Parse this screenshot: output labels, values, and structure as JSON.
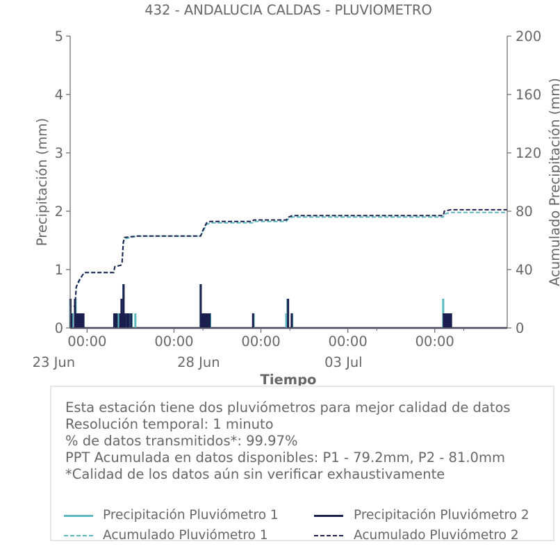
{
  "chart_data": {
    "type": "bar",
    "title": "432 - ANDALUCIA CALDAS - PLUVIOMETRO",
    "xlabel": "Tiempo",
    "ylabel": "Precipitación (mm)",
    "y2label": "Acumulado Precipitación (mm)",
    "xlim": [
      "2025-06-22 10:00",
      "2025-07-07 12:00"
    ],
    "ylim": [
      0,
      5
    ],
    "y2lim": [
      0,
      200
    ],
    "yticks": [
      0,
      1,
      2,
      3,
      4,
      5
    ],
    "y2ticks": [
      0,
      40,
      80,
      120,
      160,
      200
    ],
    "xticks": [
      {
        "x": "2025-06-23 00:00",
        "label": "00:00"
      },
      {
        "x": "2025-06-26 00:00",
        "label": "00:00"
      },
      {
        "x": "2025-06-29 00:00",
        "label": "00:00"
      },
      {
        "x": "2025-07-02 00:00",
        "label": "00:00"
      },
      {
        "x": "2025-07-05 00:00",
        "label": "00:00"
      }
    ],
    "xdate_labels": [
      {
        "x": "2025-06-23 00:00",
        "label": "23 Jun"
      },
      {
        "x": "2025-06-28 00:00",
        "label": "28 Jun"
      },
      {
        "x": "2025-07-03 00:00",
        "label": "03 Jul"
      }
    ],
    "minor_xticks": [
      "2025-06-27 00:00",
      "2025-06-30 00:00",
      "2025-07-03 00:00",
      "2025-07-06 00:00"
    ],
    "series": [
      {
        "name": "Precipitación Pluviómetro 1",
        "kind": "bar",
        "color": "#5bb8bd",
        "points": [
          [
            "2025-06-22 10:05",
            0.5
          ],
          [
            "2025-06-22 12:00",
            0.25
          ],
          [
            "2025-06-22 14:30",
            0.5
          ],
          [
            "2025-06-22 15:30",
            0.25
          ],
          [
            "2025-06-22 16:30",
            0.25
          ],
          [
            "2025-06-22 17:30",
            0.25
          ],
          [
            "2025-06-22 18:30",
            0.25
          ],
          [
            "2025-06-22 19:30",
            0.25
          ],
          [
            "2025-06-22 20:30",
            0.25
          ],
          [
            "2025-06-23 23:00",
            0.25
          ],
          [
            "2025-06-23 23:45",
            0.25
          ],
          [
            "2025-06-24 01:00",
            0.25
          ],
          [
            "2025-06-24 02:00",
            0.25
          ],
          [
            "2025-06-24 04:00",
            0.25
          ],
          [
            "2025-06-24 05:00",
            0.5
          ],
          [
            "2025-06-24 05:30",
            0.25
          ],
          [
            "2025-06-24 06:00",
            0.75
          ],
          [
            "2025-06-24 07:00",
            0.25
          ],
          [
            "2025-06-24 08:30",
            0.25
          ],
          [
            "2025-06-24 10:00",
            0.25
          ],
          [
            "2025-06-24 12:00",
            0.25
          ],
          [
            "2025-06-24 13:00",
            0.25
          ],
          [
            "2025-06-24 16:00",
            0.25
          ],
          [
            "2025-06-26 22:00",
            0.75
          ],
          [
            "2025-06-26 22:40",
            0.25
          ],
          [
            "2025-06-26 23:30",
            0.25
          ],
          [
            "2025-06-27 00:30",
            0.25
          ],
          [
            "2025-06-27 01:30",
            0.25
          ],
          [
            "2025-06-27 02:30",
            0.25
          ],
          [
            "2025-06-27 03:30",
            0.25
          ],
          [
            "2025-06-27 05:00",
            0.25
          ],
          [
            "2025-06-27 06:00",
            0.25
          ],
          [
            "2025-06-28 18:00",
            0.25
          ],
          [
            "2025-06-29 21:00",
            0.25
          ],
          [
            "2025-06-29 22:00",
            0.5
          ],
          [
            "2025-06-30 02:00",
            0.25
          ],
          [
            "2025-07-05 07:00",
            0.5
          ],
          [
            "2025-07-05 08:00",
            0.25
          ],
          [
            "2025-07-05 09:30",
            0.25
          ],
          [
            "2025-07-05 11:00",
            0.25
          ],
          [
            "2025-07-05 12:00",
            0.25
          ],
          [
            "2025-07-05 13:00",
            0.25
          ]
        ]
      },
      {
        "name": "Precipitación Pluviómetro 2",
        "kind": "bar",
        "color": "#1a1f4e",
        "points": [
          [
            "2025-06-22 10:15",
            0.5
          ],
          [
            "2025-06-22 11:00",
            0.25
          ],
          [
            "2025-06-22 14:00",
            0.5
          ],
          [
            "2025-06-22 15:00",
            0.25
          ],
          [
            "2025-06-22 16:00",
            0.25
          ],
          [
            "2025-06-22 17:00",
            0.25
          ],
          [
            "2025-06-22 18:00",
            0.25
          ],
          [
            "2025-06-22 19:00",
            0.25
          ],
          [
            "2025-06-22 20:00",
            0.25
          ],
          [
            "2025-06-22 21:00",
            0.25
          ],
          [
            "2025-06-23 22:30",
            0.25
          ],
          [
            "2025-06-23 23:30",
            0.25
          ],
          [
            "2025-06-24 00:30",
            0.25
          ],
          [
            "2025-06-24 03:30",
            0.25
          ],
          [
            "2025-06-24 04:30",
            0.5
          ],
          [
            "2025-06-24 05:15",
            0.25
          ],
          [
            "2025-06-24 06:15",
            0.75
          ],
          [
            "2025-06-24 07:15",
            0.25
          ],
          [
            "2025-06-24 09:00",
            0.25
          ],
          [
            "2025-06-24 10:30",
            0.25
          ],
          [
            "2025-06-24 12:30",
            0.25
          ],
          [
            "2025-06-26 22:10",
            0.75
          ],
          [
            "2025-06-26 23:00",
            0.25
          ],
          [
            "2025-06-27 00:00",
            0.25
          ],
          [
            "2025-06-27 01:00",
            0.25
          ],
          [
            "2025-06-27 02:00",
            0.25
          ],
          [
            "2025-06-27 03:00",
            0.25
          ],
          [
            "2025-06-27 04:00",
            0.25
          ],
          [
            "2025-06-27 05:30",
            0.25
          ],
          [
            "2025-06-28 17:30",
            0.25
          ],
          [
            "2025-06-29 22:30",
            0.5
          ],
          [
            "2025-06-30 01:30",
            0.25
          ],
          [
            "2025-07-05 07:30",
            0.25
          ],
          [
            "2025-07-05 08:30",
            0.25
          ],
          [
            "2025-07-05 09:00",
            0.25
          ],
          [
            "2025-07-05 10:00",
            0.25
          ],
          [
            "2025-07-05 11:30",
            0.25
          ],
          [
            "2025-07-05 12:30",
            0.25
          ],
          [
            "2025-07-05 13:30",
            0.25
          ]
        ]
      },
      {
        "name": "Acumulado Pluviómetro 1",
        "kind": "line-dashed",
        "axis": "right",
        "color": "#5bb8bd",
        "points": [
          [
            "2025-06-22 10:00",
            0
          ],
          [
            "2025-06-22 10:05",
            10
          ],
          [
            "2025-06-22 10:10",
            15
          ],
          [
            "2025-06-22 14:00",
            15
          ],
          [
            "2025-06-22 15:00",
            28
          ],
          [
            "2025-06-22 17:00",
            31
          ],
          [
            "2025-06-22 20:00",
            36
          ],
          [
            "2025-06-22 22:00",
            38
          ],
          [
            "2025-06-23 22:00",
            38
          ],
          [
            "2025-06-23 23:00",
            42
          ],
          [
            "2025-06-24 04:00",
            43
          ],
          [
            "2025-06-24 05:00",
            45
          ],
          [
            "2025-06-24 06:00",
            58
          ],
          [
            "2025-06-24 07:00",
            61
          ],
          [
            "2025-06-24 12:00",
            62
          ],
          [
            "2025-06-24 18:00",
            63
          ],
          [
            "2025-06-26 22:00",
            63
          ],
          [
            "2025-06-27 00:00",
            66
          ],
          [
            "2025-06-27 03:00",
            71
          ],
          [
            "2025-06-27 06:00",
            72
          ],
          [
            "2025-06-28 17:00",
            72
          ],
          [
            "2025-06-28 18:00",
            73
          ],
          [
            "2025-06-29 21:00",
            73
          ],
          [
            "2025-06-29 23:00",
            75
          ],
          [
            "2025-06-30 02:00",
            76
          ],
          [
            "2025-07-05 07:00",
            76
          ],
          [
            "2025-07-05 08:00",
            78
          ],
          [
            "2025-07-05 13:00",
            79.2
          ],
          [
            "2025-07-07 12:00",
            79.2
          ]
        ]
      },
      {
        "name": "Acumulado Pluviómetro 2",
        "kind": "line-dashed",
        "axis": "right",
        "color": "#1a1f4e",
        "points": [
          [
            "2025-06-22 10:00",
            0
          ],
          [
            "2025-06-22 10:15",
            10
          ],
          [
            "2025-06-22 10:20",
            15
          ],
          [
            "2025-06-22 14:00",
            15
          ],
          [
            "2025-06-22 15:00",
            28
          ],
          [
            "2025-06-22 17:00",
            32
          ],
          [
            "2025-06-22 20:00",
            36
          ],
          [
            "2025-06-22 22:00",
            38
          ],
          [
            "2025-06-23 22:00",
            38
          ],
          [
            "2025-06-23 23:00",
            42
          ],
          [
            "2025-06-24 04:00",
            43
          ],
          [
            "2025-06-24 05:00",
            45
          ],
          [
            "2025-06-24 06:00",
            59
          ],
          [
            "2025-06-24 07:00",
            62
          ],
          [
            "2025-06-24 12:00",
            62.5
          ],
          [
            "2025-06-24 18:00",
            63
          ],
          [
            "2025-06-26 22:00",
            63
          ],
          [
            "2025-06-27 00:00",
            67
          ],
          [
            "2025-06-27 03:00",
            72
          ],
          [
            "2025-06-27 06:00",
            73
          ],
          [
            "2025-06-28 17:00",
            73
          ],
          [
            "2025-06-28 18:00",
            74
          ],
          [
            "2025-06-29 21:00",
            74
          ],
          [
            "2025-06-29 23:00",
            76
          ],
          [
            "2025-06-30 02:00",
            77
          ],
          [
            "2025-07-05 07:00",
            77
          ],
          [
            "2025-07-05 08:00",
            80
          ],
          [
            "2025-07-05 13:00",
            81.0
          ],
          [
            "2025-07-07 12:00",
            81.0
          ]
        ]
      }
    ]
  },
  "info": {
    "lines": [
      "Esta estación tiene dos pluviómetros para mejor calidad de datos",
      "Resolución temporal: 1 minuto",
      "% de datos transmitidos*: 99.97%",
      "PPT Acumulada en datos disponibles: P1 - 79.2mm, P2 - 81.0mm",
      "*Calidad de los datos aún sin verificar exhaustivamente"
    ]
  },
  "legend": {
    "p1": "Precipitación Pluviómetro 1",
    "p2": "Precipitación Pluviómetro 2",
    "a1": "Acumulado Pluviómetro 1",
    "a2": "Acumulado Pluviómetro 2"
  }
}
